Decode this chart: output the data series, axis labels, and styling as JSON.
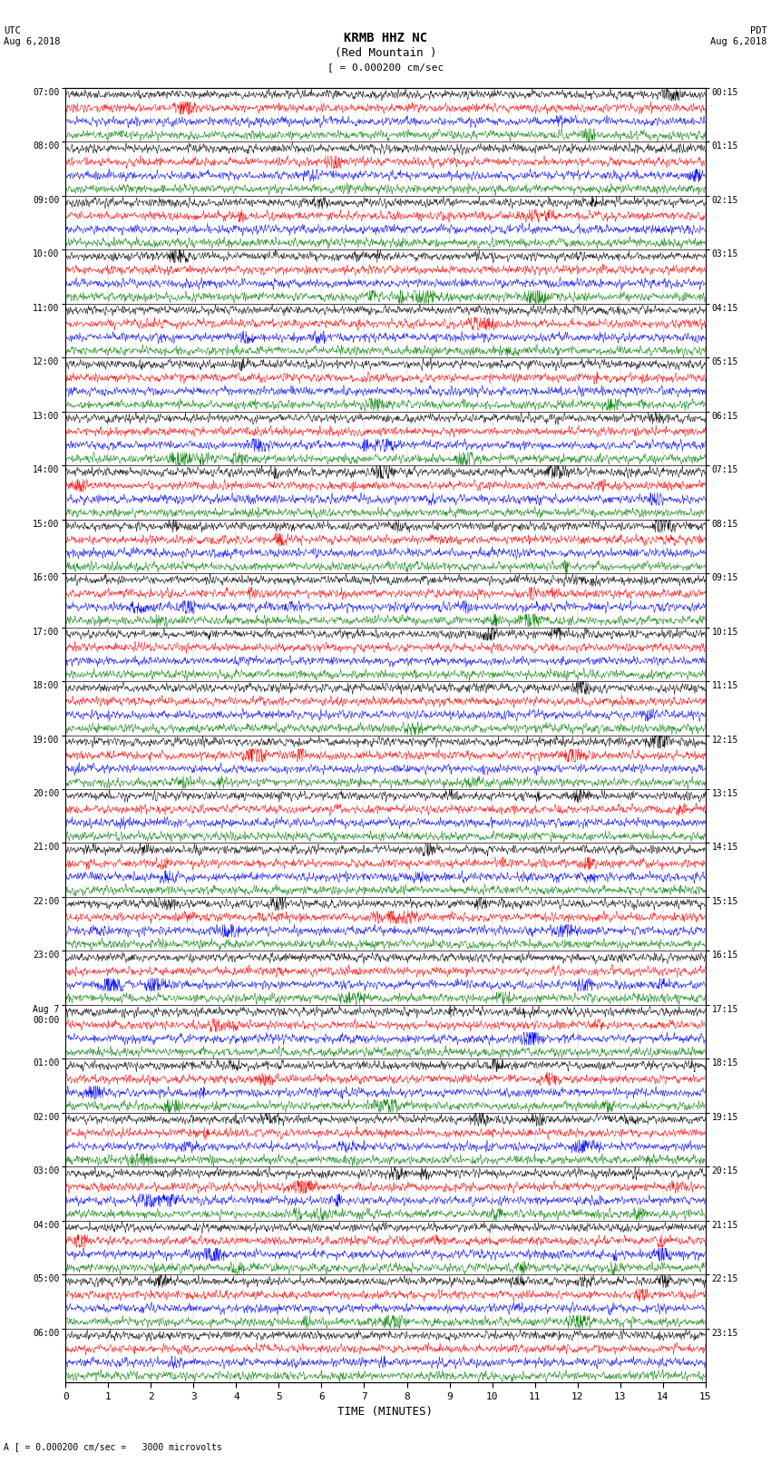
{
  "title_line1": "KRMB HHZ NC",
  "title_line2": "(Red Mountain )",
  "scale_label": "= 0.000200 cm/sec",
  "utc_label": "UTC\nAug 6,2018",
  "pdt_label": "PDT\nAug 6,2018",
  "bottom_label": "A [ = 0.000200 cm/sec =   3000 microvolts",
  "xlabel": "TIME (MINUTES)",
  "left_times_labeled": [
    "07:00",
    "08:00",
    "09:00",
    "10:00",
    "11:00",
    "12:00",
    "13:00",
    "14:00",
    "15:00",
    "16:00",
    "17:00",
    "18:00",
    "19:00",
    "20:00",
    "21:00",
    "22:00",
    "23:00",
    "Aug 7\n00:00",
    "01:00",
    "02:00",
    "03:00",
    "04:00",
    "05:00",
    "06:00"
  ],
  "right_times_labeled": [
    "00:15",
    "01:15",
    "02:15",
    "03:15",
    "04:15",
    "05:15",
    "06:15",
    "07:15",
    "08:15",
    "09:15",
    "10:15",
    "11:15",
    "12:15",
    "13:15",
    "14:15",
    "15:15",
    "16:15",
    "17:15",
    "18:15",
    "19:15",
    "20:15",
    "21:15",
    "22:15",
    "23:15"
  ],
  "colors": [
    "black",
    "red",
    "blue",
    "green"
  ],
  "n_groups": 24,
  "traces_per_group": 4,
  "fig_width": 8.5,
  "fig_height": 16.13,
  "bg_color": "white",
  "noise_seed": 12345
}
